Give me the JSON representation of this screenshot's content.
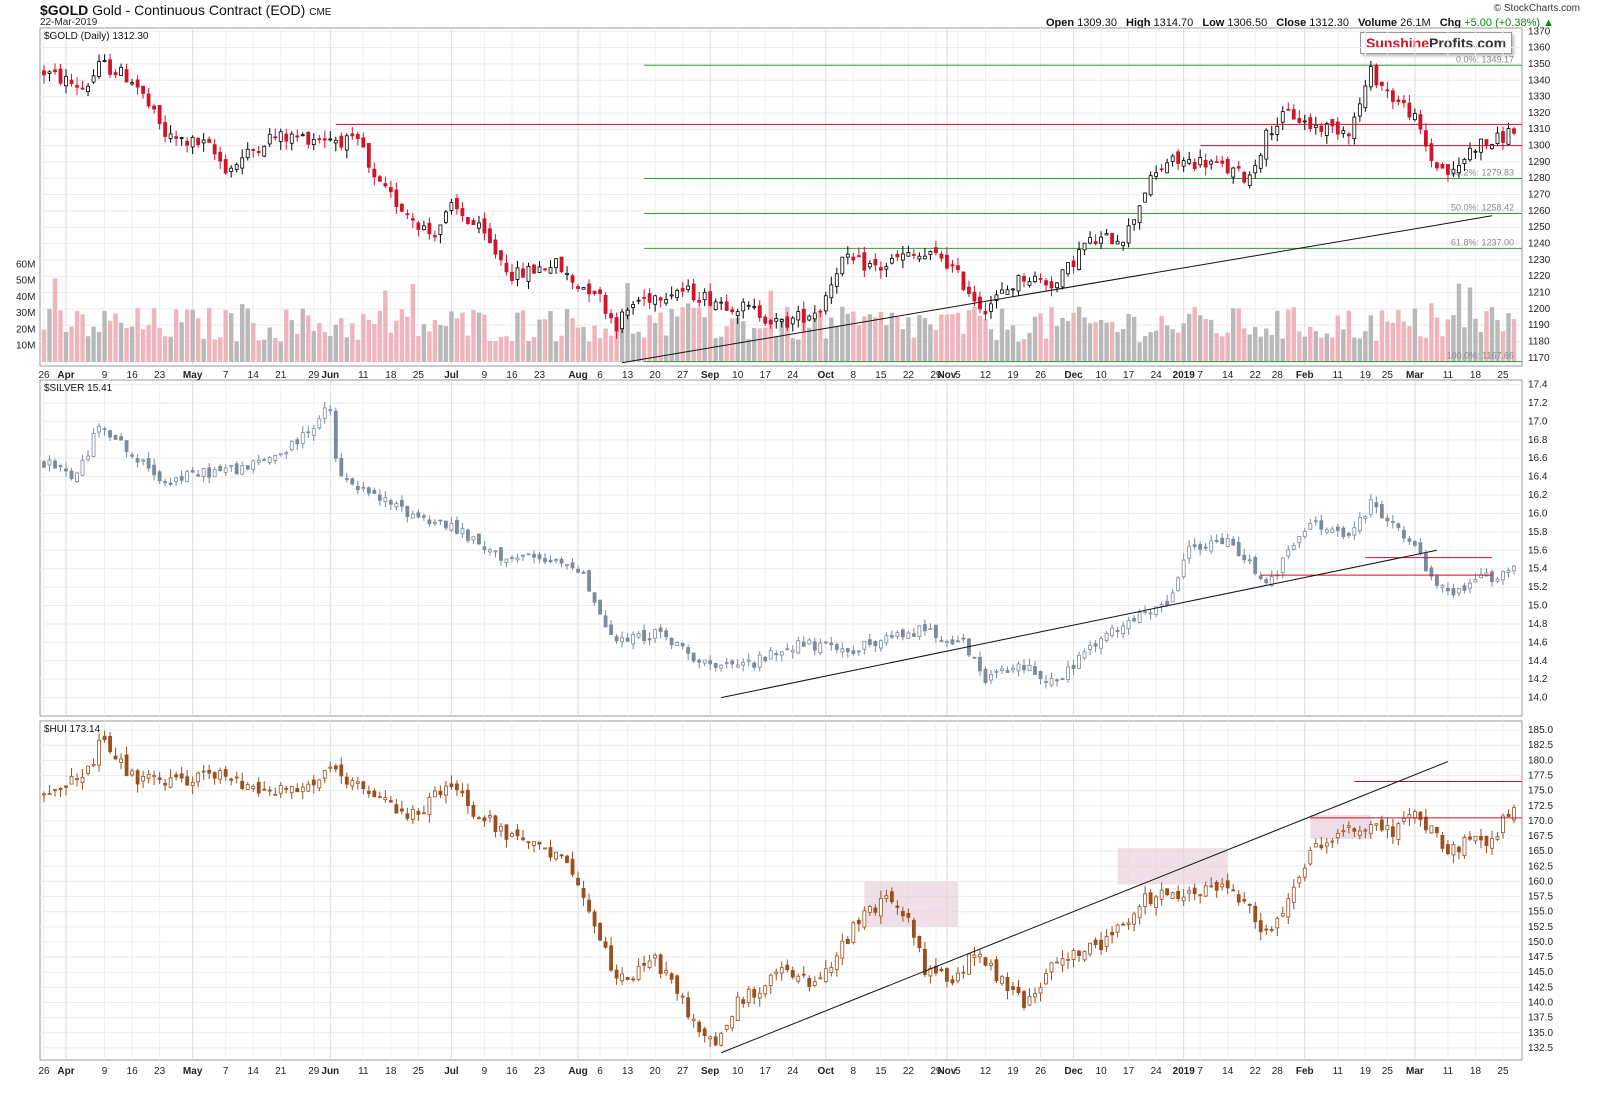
{
  "header": {
    "symbol": "$GOLD",
    "name": "Gold - Continuous Contract (EOD)",
    "exchange": "CME",
    "date": "22-Mar-2019",
    "source": "© StockCharts.com",
    "open_label": "Open",
    "open": "1309.30",
    "high_label": "High",
    "high": "1314.70",
    "low_label": "Low",
    "low": "1306.50",
    "close_label": "Close",
    "close": "1312.30",
    "volume_label": "Volume",
    "volume": "26.1M",
    "chg_label": "Chg",
    "chg": "+5.00 (+0.38%)",
    "logo_part1": "Sunshine",
    "logo_part2": "Profits.com"
  },
  "colors": {
    "up": "#000000",
    "down": "#d0142a",
    "silver": "#7c8a99",
    "hui": "#9b4e1e",
    "fib": "#2ca02c",
    "resistance": "#c8102e",
    "volume_up": "#b9b9b9",
    "volume_down": "#f0b4bd",
    "highlight": "#e8d2dc"
  },
  "chart_data": [
    {
      "type": "candlestick",
      "id": "gold",
      "label": "$GOLD (Daily) 1312.30",
      "ylim": [
        1165,
        1372
      ],
      "yticks": [
        1170,
        1180,
        1190,
        1200,
        1210,
        1220,
        1230,
        1240,
        1250,
        1260,
        1270,
        1280,
        1290,
        1300,
        1310,
        1320,
        1330,
        1340,
        1350,
        1360,
        1370
      ],
      "anchors": [
        [
          0,
          1345
        ],
        [
          10,
          1335
        ],
        [
          14,
          1350
        ],
        [
          22,
          1340
        ],
        [
          30,
          1305
        ],
        [
          40,
          1300
        ],
        [
          45,
          1285
        ],
        [
          55,
          1305
        ],
        [
          70,
          1305
        ],
        [
          78,
          1300
        ],
        [
          80,
          1280
        ],
        [
          95,
          1245
        ],
        [
          100,
          1262
        ],
        [
          106,
          1250
        ],
        [
          115,
          1220
        ],
        [
          125,
          1228
        ],
        [
          130,
          1215
        ],
        [
          135,
          1212
        ],
        [
          140,
          1190
        ],
        [
          145,
          1205
        ],
        [
          155,
          1212
        ],
        [
          165,
          1205
        ],
        [
          175,
          1198
        ],
        [
          180,
          1190
        ],
        [
          190,
          1200
        ],
        [
          195,
          1230
        ],
        [
          205,
          1225
        ],
        [
          210,
          1232
        ],
        [
          220,
          1232
        ],
        [
          230,
          1200
        ],
        [
          240,
          1220
        ],
        [
          248,
          1215
        ],
        [
          255,
          1240
        ],
        [
          265,
          1245
        ],
        [
          270,
          1275
        ],
        [
          275,
          1290
        ],
        [
          285,
          1290
        ],
        [
          295,
          1280
        ],
        [
          300,
          1310
        ],
        [
          305,
          1320
        ],
        [
          310,
          1312
        ],
        [
          320,
          1310
        ],
        [
          325,
          1345
        ],
        [
          330,
          1330
        ],
        [
          335,
          1320
        ],
        [
          340,
          1290
        ],
        [
          345,
          1282
        ],
        [
          350,
          1300
        ],
        [
          355,
          1302
        ],
        [
          360,
          1310
        ]
      ],
      "volume": {
        "ylim": [
          0,
          70
        ],
        "yticks": [
          10,
          20,
          30,
          40,
          50,
          60
        ],
        "ytick_labels": [
          "10M",
          "20M",
          "30M",
          "40M",
          "50M",
          "60M"
        ]
      },
      "fib_levels": [
        {
          "label": "0.0%: 1349.17",
          "value": 1349.17
        },
        {
          "label": "38.2%: 1279.83",
          "value": 1279.83
        },
        {
          "label": "50.0%: 1258.42",
          "value": 1258.42
        },
        {
          "label": "61.8%: 1237.00",
          "value": 1237.0
        },
        {
          "label": "100.0%: 1167.66",
          "value": 1167.66
        }
      ],
      "resistance_lines": [
        1313,
        1300
      ],
      "trendline": [
        [
          1167,
          1167
        ],
        [
          1494,
          1257
        ]
      ]
    },
    {
      "type": "candlestick",
      "id": "silver",
      "label": "$SILVER 15.41",
      "ylim": [
        13.8,
        17.45
      ],
      "yticks": [
        14.0,
        14.2,
        14.4,
        14.6,
        14.8,
        15.0,
        15.2,
        15.4,
        15.6,
        15.8,
        16.0,
        16.2,
        16.4,
        16.6,
        16.8,
        17.0,
        17.2,
        17.4
      ],
      "anchors": [
        [
          0,
          16.55
        ],
        [
          8,
          16.4
        ],
        [
          14,
          17.0
        ],
        [
          22,
          16.6
        ],
        [
          30,
          16.35
        ],
        [
          40,
          16.45
        ],
        [
          50,
          16.5
        ],
        [
          60,
          16.7
        ],
        [
          70,
          17.15
        ],
        [
          72,
          16.4
        ],
        [
          80,
          16.2
        ],
        [
          90,
          16.0
        ],
        [
          100,
          15.85
        ],
        [
          110,
          15.55
        ],
        [
          120,
          15.5
        ],
        [
          132,
          15.4
        ],
        [
          135,
          15.0
        ],
        [
          140,
          14.6
        ],
        [
          150,
          14.7
        ],
        [
          165,
          14.3
        ],
        [
          175,
          14.4
        ],
        [
          185,
          14.6
        ],
        [
          195,
          14.5
        ],
        [
          205,
          14.6
        ],
        [
          215,
          14.75
        ],
        [
          225,
          14.6
        ],
        [
          230,
          14.2
        ],
        [
          240,
          14.35
        ],
        [
          248,
          14.15
        ],
        [
          255,
          14.5
        ],
        [
          265,
          14.8
        ],
        [
          275,
          15.0
        ],
        [
          280,
          15.6
        ],
        [
          290,
          15.7
        ],
        [
          300,
          15.25
        ],
        [
          310,
          15.9
        ],
        [
          320,
          15.75
        ],
        [
          325,
          16.1
        ],
        [
          330,
          15.9
        ],
        [
          335,
          15.7
        ],
        [
          340,
          15.25
        ],
        [
          345,
          15.1
        ],
        [
          350,
          15.3
        ],
        [
          355,
          15.3
        ],
        [
          360,
          15.43
        ]
      ],
      "resistance_lines": [
        15.52,
        15.33
      ],
      "trendline": [
        [
          14.0,
          0
        ],
        [
          15.6,
          0
        ]
      ]
    },
    {
      "type": "candlestick",
      "id": "hui",
      "label": "$HUI 173.14",
      "ylim": [
        130.5,
        186.5
      ],
      "yticks": [
        132.5,
        135.0,
        137.5,
        140.0,
        142.5,
        145.0,
        147.5,
        150.0,
        152.5,
        155.0,
        157.5,
        160.0,
        162.5,
        165.0,
        167.5,
        170.0,
        172.5,
        175.0,
        177.5,
        180.0,
        182.5,
        185.0
      ],
      "anchors": [
        [
          0,
          175
        ],
        [
          10,
          177
        ],
        [
          14,
          183
        ],
        [
          22,
          177
        ],
        [
          30,
          176
        ],
        [
          40,
          178
        ],
        [
          50,
          176
        ],
        [
          62,
          175
        ],
        [
          70,
          178
        ],
        [
          80,
          174
        ],
        [
          90,
          171
        ],
        [
          100,
          176
        ],
        [
          105,
          172
        ],
        [
          115,
          167
        ],
        [
          125,
          164
        ],
        [
          130,
          162
        ],
        [
          135,
          153
        ],
        [
          140,
          143
        ],
        [
          150,
          147
        ],
        [
          160,
          136
        ],
        [
          165,
          133
        ],
        [
          170,
          140
        ],
        [
          180,
          145
        ],
        [
          190,
          143
        ],
        [
          198,
          152
        ],
        [
          205,
          157
        ],
        [
          212,
          154
        ],
        [
          216,
          145
        ],
        [
          222,
          144
        ],
        [
          228,
          148
        ],
        [
          240,
          140
        ],
        [
          250,
          148
        ],
        [
          260,
          150
        ],
        [
          270,
          157
        ],
        [
          280,
          158
        ],
        [
          290,
          160
        ],
        [
          300,
          151
        ],
        [
          310,
          165
        ],
        [
          320,
          169
        ],
        [
          330,
          168
        ],
        [
          335,
          172
        ],
        [
          340,
          168
        ],
        [
          345,
          165
        ],
        [
          350,
          167
        ],
        [
          355,
          167
        ],
        [
          360,
          173
        ]
      ],
      "resistance_lines": [
        176.5,
        170.5
      ],
      "trendline": [
        [
          131.7,
          0
        ],
        [
          179.8,
          0
        ]
      ]
    }
  ],
  "x_axis": {
    "tick_labels": [
      {
        "label": "26",
        "i": 0
      },
      {
        "label": "Apr",
        "i": 4,
        "bold": true
      },
      {
        "label": "9",
        "i": 11
      },
      {
        "label": "16",
        "i": 16
      },
      {
        "label": "23",
        "i": 21
      },
      {
        "label": "May",
        "i": 27,
        "bold": true
      },
      {
        "label": "7",
        "i": 33
      },
      {
        "label": "14",
        "i": 38
      },
      {
        "label": "21",
        "i": 43
      },
      {
        "label": "29",
        "i": 49
      },
      {
        "label": "Jun",
        "i": 52,
        "bold": true
      },
      {
        "label": "11",
        "i": 58
      },
      {
        "label": "18",
        "i": 63
      },
      {
        "label": "25",
        "i": 68
      },
      {
        "label": "Jul",
        "i": 74,
        "bold": true
      },
      {
        "label": "9",
        "i": 80
      },
      {
        "label": "16",
        "i": 85
      },
      {
        "label": "23",
        "i": 90
      },
      {
        "label": "Aug",
        "i": 97,
        "bold": true
      },
      {
        "label": "6",
        "i": 101
      },
      {
        "label": "13",
        "i": 106
      },
      {
        "label": "20",
        "i": 111
      },
      {
        "label": "27",
        "i": 116
      },
      {
        "label": "Sep",
        "i": 121,
        "bold": true
      },
      {
        "label": "10",
        "i": 126
      },
      {
        "label": "17",
        "i": 131
      },
      {
        "label": "24",
        "i": 136
      },
      {
        "label": "Oct",
        "i": 142,
        "bold": true
      },
      {
        "label": "8",
        "i": 147
      },
      {
        "label": "15",
        "i": 152
      },
      {
        "label": "22",
        "i": 157
      },
      {
        "label": "29",
        "i": 162
      },
      {
        "label": "Nov",
        "i": 164,
        "bold": true
      },
      {
        "label": "5",
        "i": 166
      },
      {
        "label": "12",
        "i": 171
      },
      {
        "label": "19",
        "i": 176
      },
      {
        "label": "26",
        "i": 181
      },
      {
        "label": "Dec",
        "i": 187,
        "bold": true
      },
      {
        "label": "10",
        "i": 192
      },
      {
        "label": "17",
        "i": 197
      },
      {
        "label": "24",
        "i": 202
      },
      {
        "label": "2019",
        "i": 207,
        "bold": true
      },
      {
        "label": "7",
        "i": 210
      },
      {
        "label": "14",
        "i": 215
      },
      {
        "label": "22",
        "i": 220
      },
      {
        "label": "28",
        "i": 224
      },
      {
        "label": "Feb",
        "i": 229,
        "bold": true
      },
      {
        "label": "11",
        "i": 235
      },
      {
        "label": "19",
        "i": 240
      },
      {
        "label": "25",
        "i": 244
      },
      {
        "label": "Mar",
        "i": 249,
        "bold": true
      },
      {
        "label": "11",
        "i": 255
      },
      {
        "label": "18",
        "i": 260
      },
      {
        "label": "25",
        "i": 265
      }
    ]
  }
}
